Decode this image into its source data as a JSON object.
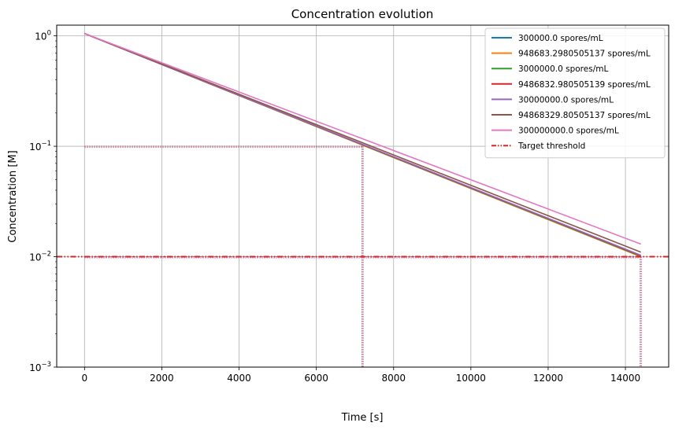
{
  "chart_data": {
    "type": "line",
    "title": "Concentration evolution",
    "xlabel": "Time [s]",
    "ylabel": "Concentration [M]",
    "xscale": "linear",
    "yscale": "log",
    "xlim": [
      -720,
      15120
    ],
    "ylim": [
      0.001,
      1.25
    ],
    "grid": true,
    "legend_position": "top-right",
    "x_ticks": [
      {
        "value": 0,
        "label": "0"
      },
      {
        "value": 2000,
        "label": "2000"
      },
      {
        "value": 4000,
        "label": "4000"
      },
      {
        "value": 6000,
        "label": "6000"
      },
      {
        "value": 8000,
        "label": "8000"
      },
      {
        "value": 10000,
        "label": "10000"
      },
      {
        "value": 12000,
        "label": "12000"
      },
      {
        "value": 14000,
        "label": "14000"
      }
    ],
    "y_ticks": [
      {
        "value": 0.001,
        "base": "10",
        "exp": "−3"
      },
      {
        "value": 0.01,
        "base": "10",
        "exp": "−2"
      },
      {
        "value": 0.1,
        "base": "10",
        "exp": "−1"
      },
      {
        "value": 1,
        "base": "10",
        "exp": "0"
      }
    ],
    "series": [
      {
        "name": "300000.0 spores/mL",
        "color": "#1f77b4",
        "x": [
          0,
          14400
        ],
        "y": [
          1.05,
          0.01
        ]
      },
      {
        "name": "948683.2980505137 spores/mL",
        "color": "#ff7f0e",
        "x": [
          0,
          14400
        ],
        "y": [
          1.05,
          0.01
        ]
      },
      {
        "name": "3000000.0 spores/mL",
        "color": "#2ca02c",
        "x": [
          0,
          14400
        ],
        "y": [
          1.05,
          0.0101
        ]
      },
      {
        "name": "9486832.980505139 spores/mL",
        "color": "#d62728",
        "x": [
          0,
          14400
        ],
        "y": [
          1.05,
          0.0102
        ]
      },
      {
        "name": "30000000.0 spores/mL",
        "color": "#9467bd",
        "x": [
          0,
          14400
        ],
        "y": [
          1.05,
          0.0103
        ]
      },
      {
        "name": "94868329.80505137 spores/mL",
        "color": "#8c564b",
        "x": [
          0,
          14400
        ],
        "y": [
          1.05,
          0.011
        ]
      },
      {
        "name": "300000000.0 spores/mL",
        "color": "#e377c2",
        "x": [
          0,
          14400
        ],
        "y": [
          1.05,
          0.013
        ]
      }
    ],
    "threshold": {
      "name": "Target threshold",
      "color": "#d62728",
      "y": 0.01
    },
    "markers": [
      {
        "x": 7200,
        "y": 0.1,
        "colors": [
          "#8c564b",
          "#e377c2"
        ]
      },
      {
        "x": 14400,
        "y": 0.01,
        "colors": [
          "#8c564b",
          "#e377c2"
        ]
      }
    ]
  }
}
